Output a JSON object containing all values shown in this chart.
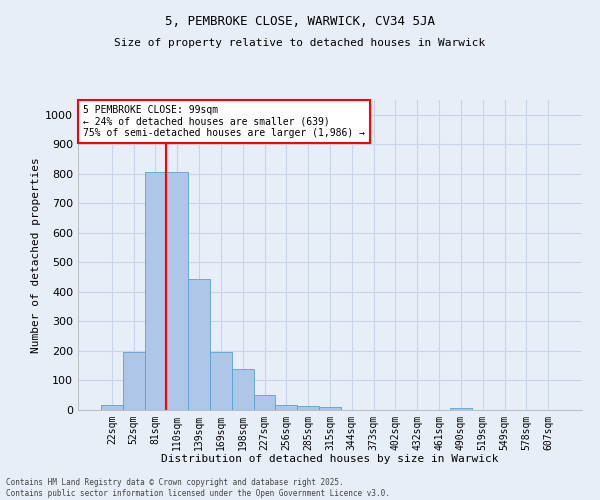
{
  "title": "5, PEMBROKE CLOSE, WARWICK, CV34 5JA",
  "subtitle": "Size of property relative to detached houses in Warwick",
  "xlabel": "Distribution of detached houses by size in Warwick",
  "ylabel": "Number of detached properties",
  "categories": [
    "22sqm",
    "52sqm",
    "81sqm",
    "110sqm",
    "139sqm",
    "169sqm",
    "198sqm",
    "227sqm",
    "256sqm",
    "285sqm",
    "315sqm",
    "344sqm",
    "373sqm",
    "402sqm",
    "432sqm",
    "461sqm",
    "490sqm",
    "519sqm",
    "549sqm",
    "578sqm",
    "607sqm"
  ],
  "values": [
    18,
    195,
    805,
    805,
    445,
    197,
    140,
    50,
    17,
    12,
    10,
    0,
    0,
    0,
    0,
    0,
    8,
    0,
    0,
    0,
    0
  ],
  "bar_color": "#aec6e8",
  "bar_edge_color": "#5a9fd4",
  "grid_color": "#c8d4e8",
  "background_color": "#e8eef8",
  "vline_color": "red",
  "annotation_text": "5 PEMBROKE CLOSE: 99sqm\n← 24% of detached houses are smaller (639)\n75% of semi-detached houses are larger (1,986) →",
  "annotation_box_color": "white",
  "annotation_box_edge": "red",
  "ylim": [
    0,
    1050
  ],
  "yticks": [
    0,
    100,
    200,
    300,
    400,
    500,
    600,
    700,
    800,
    900,
    1000
  ],
  "footer_line1": "Contains HM Land Registry data © Crown copyright and database right 2025.",
  "footer_line2": "Contains public sector information licensed under the Open Government Licence v3.0."
}
